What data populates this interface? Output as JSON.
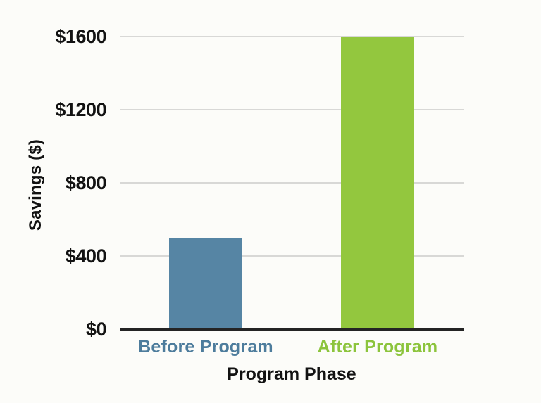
{
  "chart_data": {
    "type": "bar",
    "categories": [
      "Before Program",
      "After Program"
    ],
    "values": [
      500,
      1600
    ],
    "bar_colors": [
      "#5685a4",
      "#93c73e"
    ],
    "category_label_colors": [
      "#4d7c9c",
      "#8cc43c"
    ],
    "title": "",
    "xlabel": "Program Phase",
    "ylabel": "Savings ($)",
    "ylim": [
      0,
      1600
    ],
    "yticks": [
      {
        "value": 0,
        "label": "$0"
      },
      {
        "value": 400,
        "label": "$400"
      },
      {
        "value": 800,
        "label": "$800"
      },
      {
        "value": 1200,
        "label": "$1200"
      },
      {
        "value": 1600,
        "label": "$1600"
      }
    ],
    "grid": true,
    "legend_position": "none"
  },
  "colors": {
    "background": "#fcfcf9",
    "gridline": "#d8d8d6",
    "axis_line": "#242424",
    "tick_text": "#121212"
  }
}
